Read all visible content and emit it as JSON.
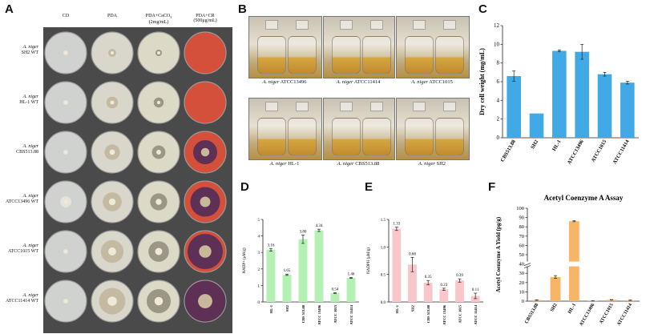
{
  "panel_a": {
    "letter": "A",
    "columns": [
      "CD",
      "PDA",
      "PDA+CaCO",
      "PDA+CR"
    ],
    "column_sub": [
      "",
      "",
      "(2mg/mL)",
      "(500μg/mL)"
    ],
    "column_sub2": [
      "",
      "",
      "3",
      ""
    ],
    "rows": [
      {
        "species": "A. niger",
        "strain": "SH2 WT"
      },
      {
        "species": "A. niger",
        "strain": "HL-1 WT"
      },
      {
        "species": "A. niger",
        "strain": "CBS513.88"
      },
      {
        "species": "A. niger",
        "strain": "ATCC13496 WT"
      },
      {
        "species": "A. niger",
        "strain": "ATCC1015 WT"
      },
      {
        "species": "A. niger",
        "strain": "ATCC11414 WT"
      }
    ],
    "plate_colors": {
      "cd": "#cfd2cf",
      "pda": "#d9d6cc",
      "caco3": "#dcd9c6",
      "cr": "#d4503a",
      "cr_dark": "#4a2a5a"
    }
  },
  "panel_b": {
    "letter": "B",
    "captions": [
      {
        "species": "A. niger",
        "strain": "ATCC13496"
      },
      {
        "species": "A. niger",
        "strain": "ATCC11414"
      },
      {
        "species": "A. niger",
        "strain": "ATCC1015"
      },
      {
        "species": "A. niger",
        "strain": "HL-1"
      },
      {
        "species": "A. niger",
        "strain": "CBS513.88"
      },
      {
        "species": "A. niger",
        "strain": "SH2"
      }
    ]
  },
  "chart_data": [
    {
      "panel": "C",
      "type": "bar",
      "categories": [
        "CBS513.88",
        "SH2",
        "HL-1",
        "ATCC13496",
        "ATCC1015",
        "ATCC11414"
      ],
      "values": [
        6.6,
        2.6,
        9.3,
        9.2,
        6.8,
        5.9
      ],
      "errors": [
        0.55,
        0,
        0.1,
        0.8,
        0.2,
        0.15
      ],
      "ylabel": "Dry cell weight (mg/mL)",
      "ylim": [
        0,
        12
      ],
      "yticks": [
        0,
        2,
        4,
        6,
        8,
        10,
        12
      ],
      "color": "#41a9e6"
    },
    {
      "panel": "D",
      "type": "bar",
      "categories": [
        "HL-1",
        "SH2",
        "CBS 513.88",
        "ATCC 13496",
        "ATCC 1015",
        "ATCC 11414"
      ],
      "values": [
        3.16,
        1.65,
        3.8,
        4.34,
        0.54,
        1.46
      ],
      "value_labels": [
        "3.16",
        "1.65",
        "3.80",
        "4.34",
        "0.54",
        "1.46"
      ],
      "errors": [
        0.08,
        0.04,
        0.25,
        0.07,
        0.02,
        0.03
      ],
      "ylabel": "NADP+ (μM/g)",
      "ylim": [
        0,
        5
      ],
      "yticks": [
        0,
        1,
        2,
        3,
        4,
        5
      ],
      "color": "#b5f0b5"
    },
    {
      "panel": "E",
      "type": "bar",
      "categories": [
        "HL-1",
        "SH2",
        "CBS 513.88",
        "ATCC 13496",
        "ATCC 1015",
        "ATCC 11414"
      ],
      "values": [
        1.33,
        0.68,
        0.35,
        0.23,
        0.39,
        0.11
      ],
      "value_labels": [
        "1.33",
        "0.68",
        "0.35",
        "0.23",
        "0.39",
        "0.11"
      ],
      "errors": [
        0.03,
        0.13,
        0.04,
        0.02,
        0.03,
        0.05
      ],
      "ylabel": "NADPH (μM/g)",
      "ylim": [
        0,
        1.5
      ],
      "yticks": [
        0.0,
        0.5,
        1.0,
        1.5
      ],
      "color": "#f9c6c9"
    },
    {
      "panel": "F",
      "type": "bar",
      "title": "Acetyl Coenzyme A Assay",
      "categories": [
        "CBS513.88",
        "SH2",
        "HL-1",
        "ATCC13496",
        "ATCC1015",
        "ATCC11414"
      ],
      "values": [
        1.2,
        26.0,
        86.0,
        0.3,
        1.5,
        1.0
      ],
      "errors": [
        0.2,
        1.5,
        0.5,
        0.1,
        0.2,
        0.2
      ],
      "ylabel": "Acetyl Coenzyme A Yield (pg/g)",
      "ylim": [
        0,
        100
      ],
      "yticks": [
        0,
        10,
        20,
        30,
        40,
        50,
        60,
        70,
        80,
        90,
        100
      ],
      "color": "#f6b567"
    }
  ]
}
